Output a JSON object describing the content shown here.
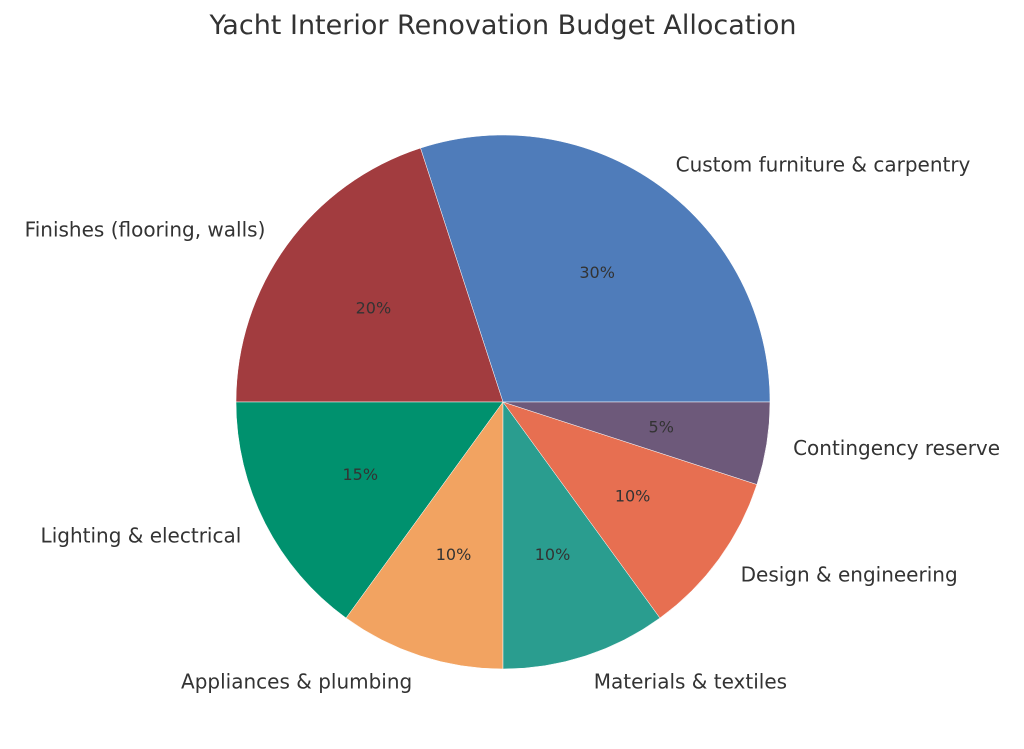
{
  "chart_data": {
    "type": "pie",
    "title": "Yacht Interior Renovation Budget Allocation",
    "start_angle_deg": 0,
    "direction": "counterclockwise",
    "categories": [
      "Custom furniture & carpentry",
      "Finishes (flooring, walls)",
      "Lighting & electrical",
      "Appliances & plumbing",
      "Materials & textiles",
      "Design & engineering",
      "Contingency reserve"
    ],
    "values": [
      30,
      20,
      15,
      10,
      10,
      10,
      5
    ],
    "value_labels": [
      "30%",
      "20%",
      "15%",
      "10%",
      "10%",
      "10%",
      "5%"
    ],
    "colors": [
      "#4f7cba",
      "#a23c3f",
      "#00916e",
      "#f2a361",
      "#2a9d8f",
      "#e76f51",
      "#6d597a"
    ],
    "slice_edge_color": "#ffffff",
    "legend": "none"
  }
}
